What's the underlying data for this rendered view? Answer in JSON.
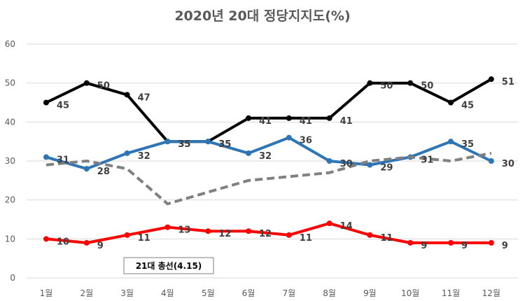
{
  "chart_data": {
    "type": "line",
    "title": "2020년 20대 정당지지도(%)",
    "categories": [
      "1월",
      "2월",
      "3월",
      "4월",
      "5월",
      "6월",
      "7월",
      "8월",
      "9월",
      "10월",
      "11월",
      "12월"
    ],
    "ylim": [
      0,
      60
    ],
    "yticks": [
      0,
      10,
      20,
      30,
      40,
      50,
      60
    ],
    "grid": true,
    "series": [
      {
        "values": [
          45,
          50,
          47,
          35,
          35,
          41,
          41,
          41,
          50,
          50,
          45,
          51
        ],
        "color": "#000000",
        "dashed": false,
        "labels": true
      },
      {
        "values": [
          31,
          28,
          32,
          35,
          35,
          32,
          36,
          30,
          29,
          31,
          35,
          30
        ],
        "color": "#2e75b6",
        "dashed": false,
        "labels": true
      },
      {
        "values": [
          29,
          30,
          28,
          19,
          22,
          25,
          26,
          27,
          30,
          31,
          30,
          32
        ],
        "color": "#808080",
        "dashed": true,
        "labels": false
      },
      {
        "values": [
          10,
          9,
          11,
          13,
          12,
          12,
          11,
          14,
          11,
          9,
          9,
          9
        ],
        "color": "#ff0000",
        "dashed": false,
        "labels": true
      }
    ],
    "annotation": {
      "text": "21대 총선(4.15)"
    }
  }
}
